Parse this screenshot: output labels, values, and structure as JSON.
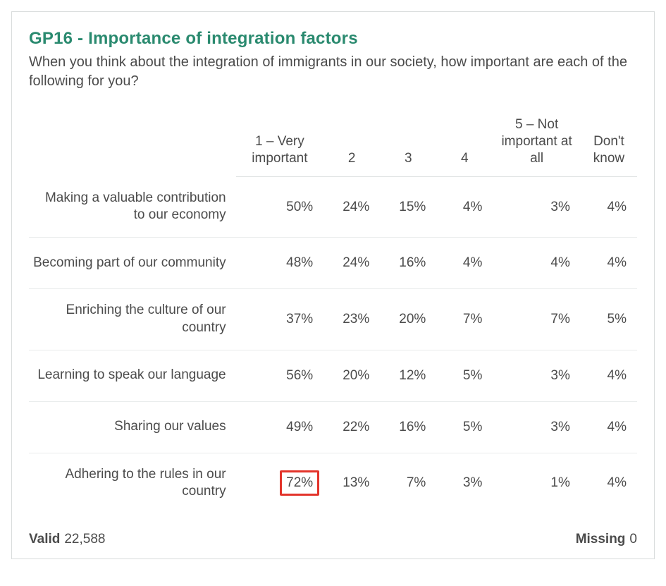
{
  "card": {
    "title": "GP16 - Importance of integration factors",
    "subtitle": "When you think about the integration of immigrants in our society, how important are each of the following for you?",
    "border_color": "#d9dcdc",
    "title_color": "#2a8a6f",
    "text_color": "#4b4b4b",
    "highlight_border_color": "#e3342b"
  },
  "table": {
    "type": "table",
    "columns": [
      {
        "label": "1 – Very important",
        "align": "center",
        "width_class": "c-col-wide"
      },
      {
        "label": "2",
        "align": "center",
        "width_class": "c-col"
      },
      {
        "label": "3",
        "align": "center",
        "width_class": "c-col"
      },
      {
        "label": "4",
        "align": "center",
        "width_class": "c-col"
      },
      {
        "label": "5 – Not important at all",
        "align": "center",
        "width_class": "c-col-wide"
      },
      {
        "label": "Don't know",
        "align": "center",
        "width_class": "c-col"
      }
    ],
    "rows": [
      {
        "label": "Making a valuable contribution to our economy",
        "cells": [
          {
            "value": "50%",
            "highlight": false
          },
          {
            "value": "24%",
            "highlight": false
          },
          {
            "value": "15%",
            "highlight": false
          },
          {
            "value": "4%",
            "highlight": false
          },
          {
            "value": "3%",
            "highlight": false
          },
          {
            "value": "4%",
            "highlight": false
          }
        ]
      },
      {
        "label": "Becoming part of our community",
        "cells": [
          {
            "value": "48%",
            "highlight": false
          },
          {
            "value": "24%",
            "highlight": false
          },
          {
            "value": "16%",
            "highlight": false
          },
          {
            "value": "4%",
            "highlight": false
          },
          {
            "value": "4%",
            "highlight": false
          },
          {
            "value": "4%",
            "highlight": false
          }
        ]
      },
      {
        "label": "Enriching the culture of our country",
        "cells": [
          {
            "value": "37%",
            "highlight": false
          },
          {
            "value": "23%",
            "highlight": false
          },
          {
            "value": "20%",
            "highlight": false
          },
          {
            "value": "7%",
            "highlight": false
          },
          {
            "value": "7%",
            "highlight": false
          },
          {
            "value": "5%",
            "highlight": false
          }
        ]
      },
      {
        "label": "Learning to speak our language",
        "cells": [
          {
            "value": "56%",
            "highlight": false
          },
          {
            "value": "20%",
            "highlight": false
          },
          {
            "value": "12%",
            "highlight": false
          },
          {
            "value": "5%",
            "highlight": false
          },
          {
            "value": "3%",
            "highlight": false
          },
          {
            "value": "4%",
            "highlight": false
          }
        ]
      },
      {
        "label": "Sharing our values",
        "cells": [
          {
            "value": "49%",
            "highlight": false
          },
          {
            "value": "22%",
            "highlight": false
          },
          {
            "value": "16%",
            "highlight": false
          },
          {
            "value": "5%",
            "highlight": false
          },
          {
            "value": "3%",
            "highlight": false
          },
          {
            "value": "4%",
            "highlight": false
          }
        ]
      },
      {
        "label": "Adhering to the rules in our country",
        "cells": [
          {
            "value": "72%",
            "highlight": true
          },
          {
            "value": "13%",
            "highlight": false
          },
          {
            "value": "7%",
            "highlight": false
          },
          {
            "value": "3%",
            "highlight": false
          },
          {
            "value": "1%",
            "highlight": false
          },
          {
            "value": "4%",
            "highlight": false
          }
        ]
      }
    ],
    "font_size_pt": 14,
    "row_border_color": "#e9ecec",
    "header_border_color": "#e0e3e3"
  },
  "footer": {
    "valid_label": "Valid",
    "valid_value": "22,588",
    "missing_label": "Missing",
    "missing_value": "0"
  }
}
